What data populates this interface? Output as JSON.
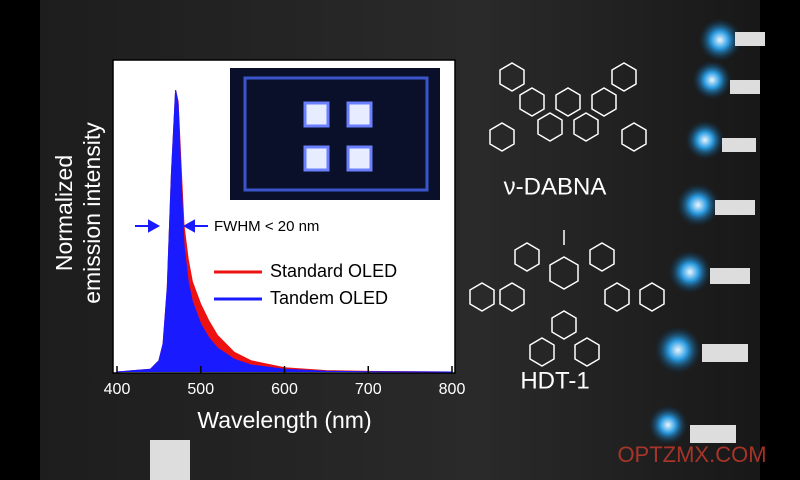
{
  "chart_data": {
    "type": "area",
    "ylabel": [
      "Normalized",
      "emission intensity"
    ],
    "xlabel": "Wavelength (nm)",
    "x": [
      400,
      440,
      450,
      455,
      460,
      465,
      470,
      473,
      477,
      480,
      485,
      490,
      500,
      510,
      520,
      540,
      560,
      600,
      650,
      700,
      800
    ],
    "series": [
      {
        "name": "Standard OLED",
        "color": "#ee1111",
        "values": [
          0,
          0.01,
          0.04,
          0.1,
          0.3,
          0.7,
          1.0,
          0.96,
          0.7,
          0.52,
          0.4,
          0.32,
          0.24,
          0.18,
          0.13,
          0.07,
          0.04,
          0.015,
          0.005,
          0.002,
          0
        ]
      },
      {
        "name": "Tandem OLED",
        "color": "#1a1aff",
        "values": [
          0,
          0.01,
          0.04,
          0.1,
          0.3,
          0.7,
          1.0,
          0.95,
          0.65,
          0.45,
          0.32,
          0.25,
          0.17,
          0.12,
          0.085,
          0.045,
          0.025,
          0.01,
          0.003,
          0.001,
          0
        ]
      }
    ],
    "xlim": [
      400,
      800
    ],
    "xticks": [
      400,
      500,
      600,
      700,
      800
    ],
    "ylim": [
      0,
      1.1
    ],
    "annotation": "FWHM < 20 nm"
  },
  "molecules": [
    "ν-DABNA",
    "HDT-1"
  ],
  "watermark": "OPTZMX.COM"
}
